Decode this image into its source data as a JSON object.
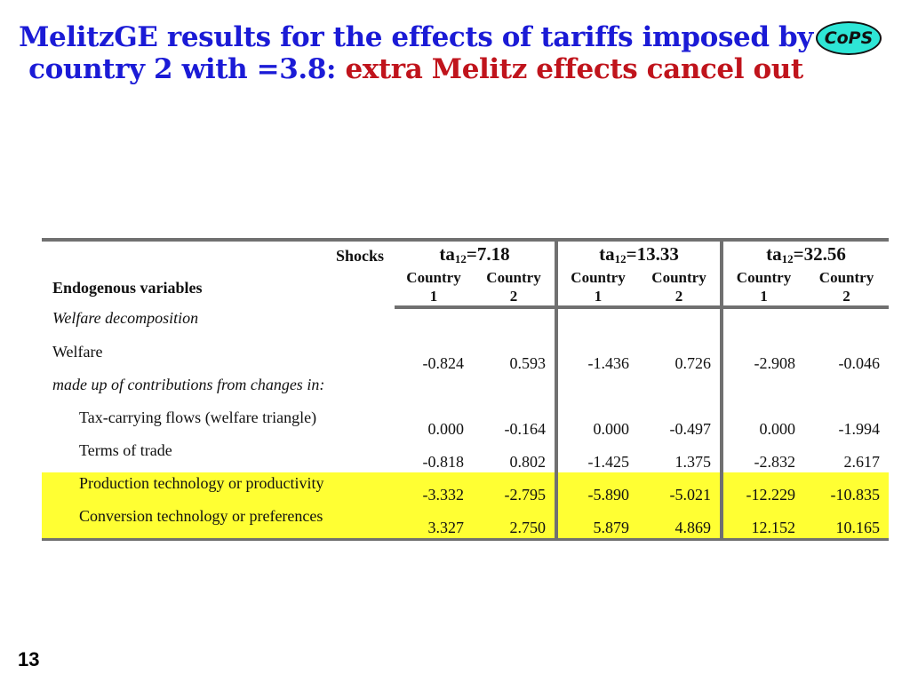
{
  "title": {
    "part1": "MelitzGE results for the effects of tariffs imposed by country 2 with  =3.8:",
    "part2": "extra Melitz effects cancel out"
  },
  "logo": {
    "text": "CoPS"
  },
  "table": {
    "shocks_label": "Shocks",
    "endogenous_label": "Endogenous variables",
    "shocks": [
      {
        "prefix": "ta",
        "sub": "12",
        "value": "=7.18"
      },
      {
        "prefix": "ta",
        "sub": "12",
        "value": "=13.33"
      },
      {
        "prefix": "ta",
        "sub": "12",
        "value": "=32.56"
      }
    ],
    "country_headers": [
      {
        "line1": "Country",
        "line2": "1"
      },
      {
        "line1": "Country",
        "line2": "2"
      },
      {
        "line1": "Country",
        "line2": "1"
      },
      {
        "line1": "Country",
        "line2": "2"
      },
      {
        "line1": "Country",
        "line2": "1"
      },
      {
        "line1": "Country",
        "line2": "2"
      }
    ],
    "rows": [
      {
        "label": "Welfare decomposition",
        "values": [
          "",
          "",
          "",
          "",
          "",
          ""
        ]
      },
      {
        "label": "Welfare",
        "values": [
          "-0.824",
          "0.593",
          "-1.436",
          "0.726",
          "-2.908",
          "-0.046"
        ]
      },
      {
        "label": "made up of  contributions from changes in:",
        "values": [
          "",
          "",
          "",
          "",
          "",
          ""
        ]
      },
      {
        "label": "Tax-carrying flows (welfare triangle)",
        "values": [
          "0.000",
          "-0.164",
          "0.000",
          "-0.497",
          "0.000",
          "-1.994"
        ]
      },
      {
        "label": "Terms of trade",
        "values": [
          "-0.818",
          "0.802",
          "-1.425",
          "1.375",
          "-2.832",
          "2.617"
        ]
      },
      {
        "label": "Production technology or productivity",
        "values": [
          "-3.332",
          "-2.795",
          "-5.890",
          "-5.021",
          "-12.229",
          "-10.835"
        ]
      },
      {
        "label": "Conversion technology or preferences",
        "values": [
          "3.327",
          "2.750",
          "5.879",
          "4.869",
          "12.152",
          "10.165"
        ]
      }
    ]
  },
  "colors": {
    "title_blue": "#1b1bd6",
    "title_red": "#c0141c",
    "highlight": "#ffff33",
    "logo_fill": "#2ee6d6"
  },
  "page_number": "13"
}
